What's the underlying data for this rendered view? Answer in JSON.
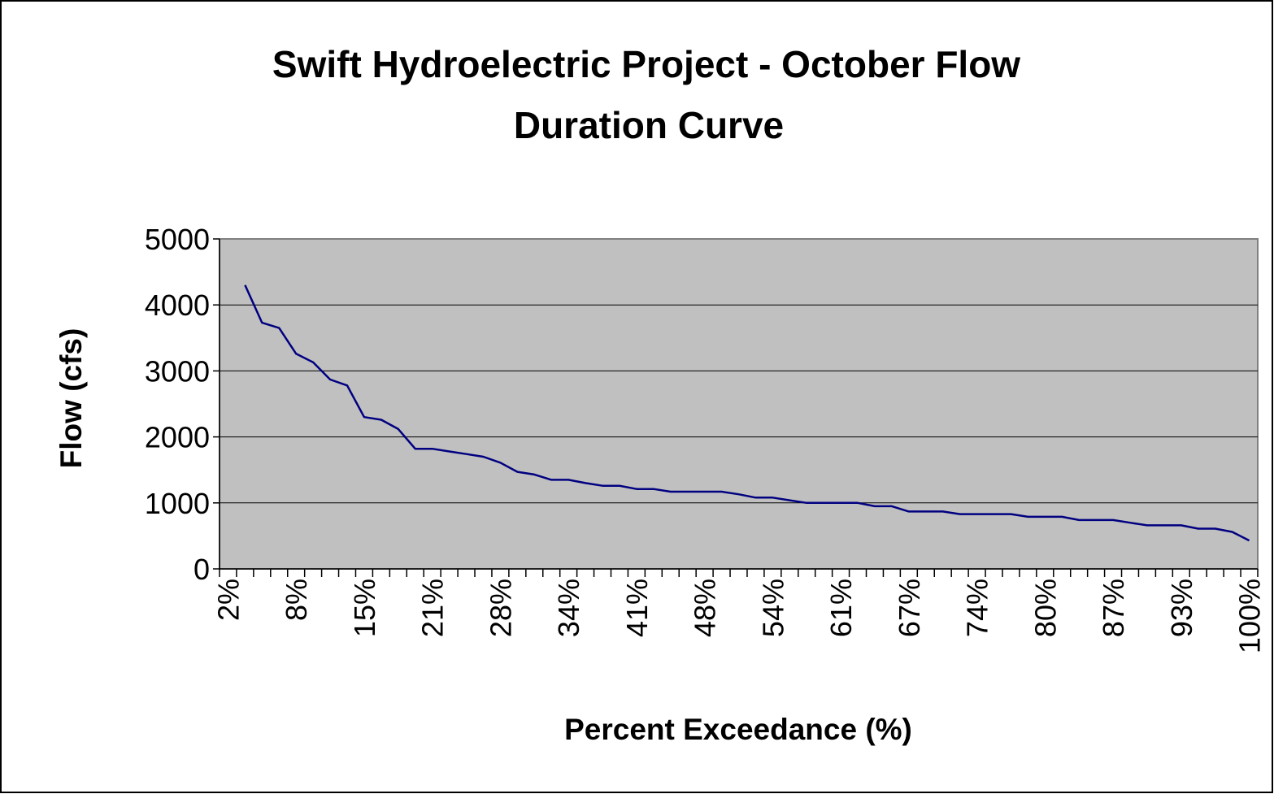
{
  "chart_data": {
    "type": "line",
    "title": [
      "Swift Hydroelectric Project - October Flow",
      "Duration Curve"
    ],
    "x_label": "Percent Exceedance (%)",
    "y_label": "Flow (cfs)",
    "categories": [
      "2%",
      null,
      null,
      null,
      "8%",
      null,
      null,
      null,
      "15%",
      null,
      null,
      null,
      "21%",
      null,
      null,
      null,
      "28%",
      null,
      null,
      null,
      "34%",
      null,
      null,
      null,
      "41%",
      null,
      null,
      null,
      "48%",
      null,
      null,
      null,
      "54%",
      null,
      null,
      null,
      "61%",
      null,
      null,
      null,
      "67%",
      null,
      null,
      null,
      "74%",
      null,
      null,
      null,
      "80%",
      null,
      null,
      null,
      "87%",
      null,
      null,
      null,
      "93%",
      null,
      null,
      null,
      "100%"
    ],
    "series": [
      {
        "name": "Flow",
        "color": "#000080",
        "values": [
          null,
          4300,
          3730,
          3650,
          3260,
          3130,
          2870,
          2780,
          2300,
          2260,
          2120,
          1820,
          1820,
          1780,
          1740,
          1700,
          1610,
          1470,
          1430,
          1350,
          1350,
          1300,
          1260,
          1260,
          1210,
          1210,
          1170,
          1170,
          1170,
          1170,
          1130,
          1080,
          1080,
          1040,
          1000,
          1000,
          1000,
          1000,
          950,
          950,
          870,
          870,
          870,
          830,
          830,
          830,
          830,
          790,
          790,
          790,
          740,
          740,
          740,
          700,
          660,
          660,
          660,
          610,
          610,
          560,
          430
        ]
      }
    ],
    "ylim": [
      0,
      5000
    ],
    "yticks": [
      0,
      1000,
      2000,
      3000,
      4000,
      5000
    ],
    "grid": true,
    "plot_background": "#c0c0c0"
  }
}
